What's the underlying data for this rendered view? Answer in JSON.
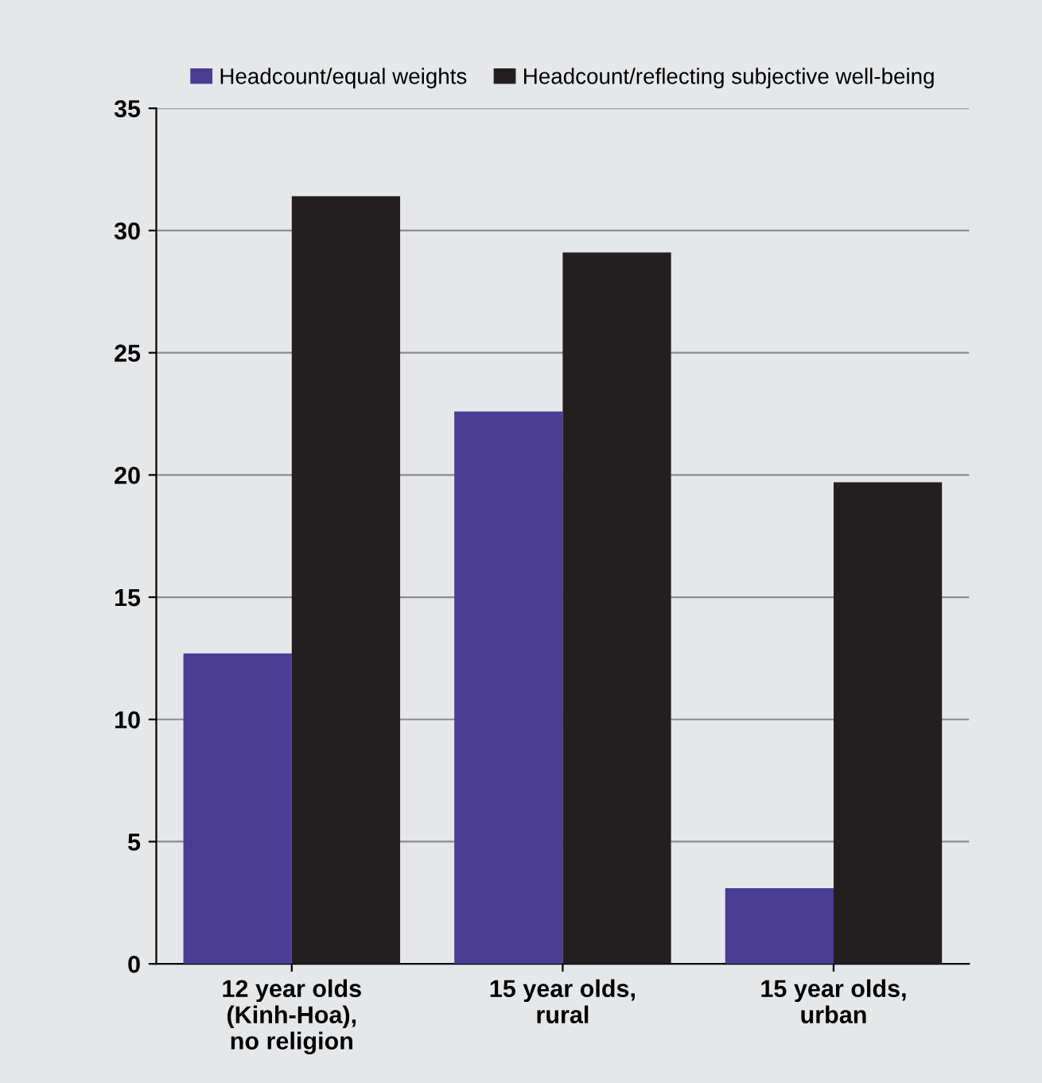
{
  "chart_data": {
    "type": "bar",
    "categories": [
      "12 year olds\n(Kinh-Hoa),\nno religion",
      "15 year olds,\nrural",
      "15 year olds,\nurban"
    ],
    "series": [
      {
        "name": "Headcount/equal weights",
        "color": "#4b3c96",
        "values": [
          12.7,
          22.6,
          3.1
        ]
      },
      {
        "name": "Headcount/reflecting subjective well-being",
        "color": "#231f20",
        "values": [
          31.4,
          29.1,
          19.7
        ]
      }
    ],
    "ylim": [
      0,
      35
    ],
    "yticks": [
      0,
      5,
      10,
      15,
      20,
      25,
      30,
      35
    ],
    "grid": "y",
    "legend": "top"
  }
}
